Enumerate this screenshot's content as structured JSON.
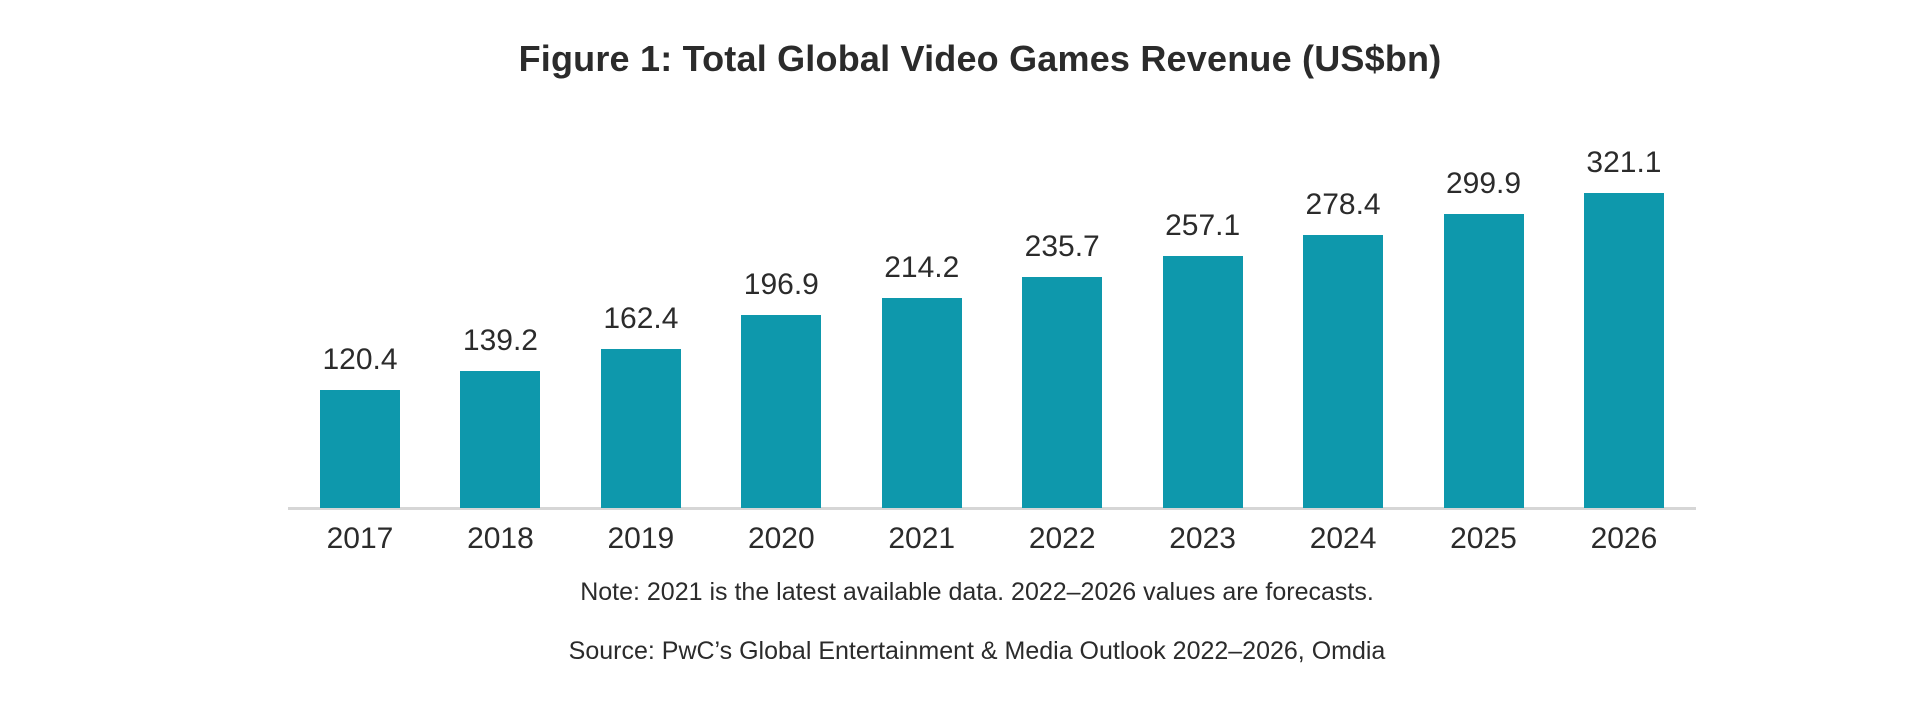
{
  "figure": {
    "title": "Figure 1: Total Global Video Games Revenue (US$bn)",
    "note": "Note: 2021 is the latest available data. 2022–2026 values are forecasts.",
    "source": "Source: PwC’s Global Entertainment & Media Outlook 2022–2026, Omdia"
  },
  "chart_data": {
    "type": "bar",
    "title": "Figure 1: Total Global Video Games Revenue (US$bn)",
    "categories": [
      "2017",
      "2018",
      "2019",
      "2020",
      "2021",
      "2022",
      "2023",
      "2024",
      "2025",
      "2026"
    ],
    "values": [
      120.4,
      139.2,
      162.4,
      196.9,
      214.2,
      235.7,
      257.1,
      278.4,
      299.9,
      321.1
    ],
    "xlabel": "",
    "ylabel": "",
    "ylim": [
      0,
      340
    ],
    "grid": false,
    "legend": "none",
    "value_labels_shown": true,
    "bar_color": "#0e98ac"
  },
  "colors": {
    "bar": "#0e98ac",
    "text": "#2b2b2b",
    "axis_line": "#d6d6d6",
    "background": "#ffffff"
  }
}
